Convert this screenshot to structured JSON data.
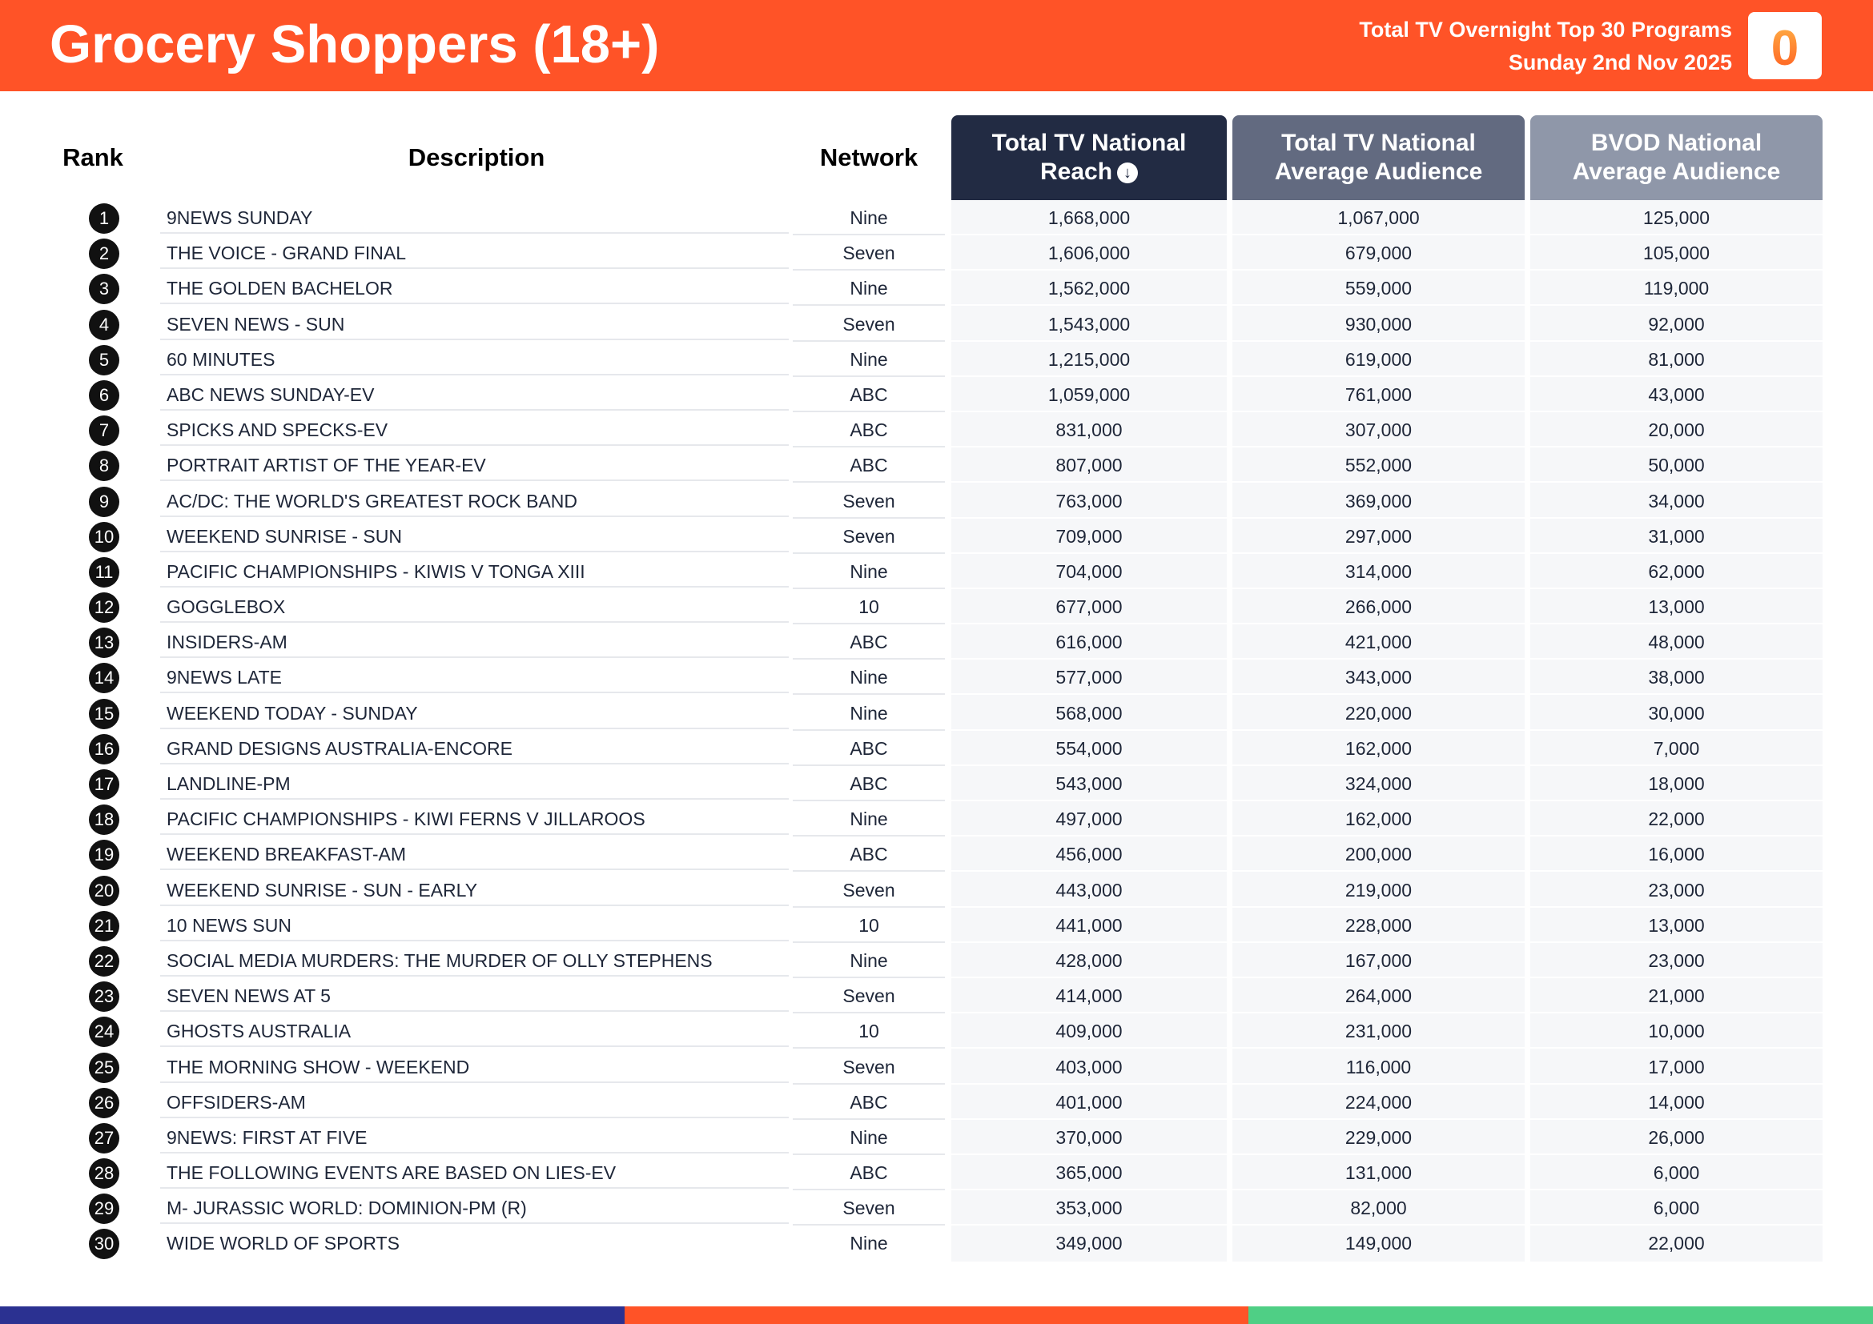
{
  "header": {
    "title": "Grocery Shoppers (18+)",
    "subtitle_line1": "Total TV Overnight Top 30 Programs",
    "subtitle_line2": "Sunday 2nd Nov 2025",
    "logo_label": "0",
    "logo_icon": "oztam-logo-icon",
    "color": "#ff5327"
  },
  "columns": {
    "rank": "Rank",
    "description": "Description",
    "network": "Network",
    "reach_line1": "Total TV National",
    "reach_line2": "Reach",
    "reach_sort_icon": "sort-down-circle-icon",
    "avg_line1": "Total TV National",
    "avg_line2": "Average Audience",
    "bvod_line1": "BVOD National",
    "bvod_line2": "Average Audience"
  },
  "colors": {
    "reach_header": "#222b43",
    "avg_header": "#626a80",
    "bvod_header": "#8f97a9",
    "footer_1": "#2b3191",
    "footer_2": "#ff5327",
    "footer_3": "#4fcf85"
  },
  "rows": [
    {
      "rank": "1",
      "description": "9NEWS SUNDAY",
      "network": "Nine",
      "reach": "1,668,000",
      "avg": "1,067,000",
      "bvod": "125,000"
    },
    {
      "rank": "2",
      "description": "THE VOICE - GRAND FINAL",
      "network": "Seven",
      "reach": "1,606,000",
      "avg": "679,000",
      "bvod": "105,000"
    },
    {
      "rank": "3",
      "description": "THE GOLDEN BACHELOR",
      "network": "Nine",
      "reach": "1,562,000",
      "avg": "559,000",
      "bvod": "119,000"
    },
    {
      "rank": "4",
      "description": "SEVEN NEWS - SUN",
      "network": "Seven",
      "reach": "1,543,000",
      "avg": "930,000",
      "bvod": "92,000"
    },
    {
      "rank": "5",
      "description": "60 MINUTES",
      "network": "Nine",
      "reach": "1,215,000",
      "avg": "619,000",
      "bvod": "81,000"
    },
    {
      "rank": "6",
      "description": "ABC NEWS SUNDAY-EV",
      "network": "ABC",
      "reach": "1,059,000",
      "avg": "761,000",
      "bvod": "43,000"
    },
    {
      "rank": "7",
      "description": "SPICKS AND SPECKS-EV",
      "network": "ABC",
      "reach": "831,000",
      "avg": "307,000",
      "bvod": "20,000"
    },
    {
      "rank": "8",
      "description": "PORTRAIT ARTIST OF THE YEAR-EV",
      "network": "ABC",
      "reach": "807,000",
      "avg": "552,000",
      "bvod": "50,000"
    },
    {
      "rank": "9",
      "description": "AC/DC: THE WORLD'S GREATEST ROCK BAND",
      "network": "Seven",
      "reach": "763,000",
      "avg": "369,000",
      "bvod": "34,000"
    },
    {
      "rank": "10",
      "description": "WEEKEND SUNRISE - SUN",
      "network": "Seven",
      "reach": "709,000",
      "avg": "297,000",
      "bvod": "31,000"
    },
    {
      "rank": "11",
      "description": "PACIFIC CHAMPIONSHIPS - KIWIS V TONGA XIII",
      "network": "Nine",
      "reach": "704,000",
      "avg": "314,000",
      "bvod": "62,000"
    },
    {
      "rank": "12",
      "description": "GOGGLEBOX",
      "network": "10",
      "reach": "677,000",
      "avg": "266,000",
      "bvod": "13,000"
    },
    {
      "rank": "13",
      "description": "INSIDERS-AM",
      "network": "ABC",
      "reach": "616,000",
      "avg": "421,000",
      "bvod": "48,000"
    },
    {
      "rank": "14",
      "description": "9NEWS LATE",
      "network": "Nine",
      "reach": "577,000",
      "avg": "343,000",
      "bvod": "38,000"
    },
    {
      "rank": "15",
      "description": "WEEKEND TODAY - SUNDAY",
      "network": "Nine",
      "reach": "568,000",
      "avg": "220,000",
      "bvod": "30,000"
    },
    {
      "rank": "16",
      "description": "GRAND DESIGNS AUSTRALIA-ENCORE",
      "network": "ABC",
      "reach": "554,000",
      "avg": "162,000",
      "bvod": "7,000"
    },
    {
      "rank": "17",
      "description": "LANDLINE-PM",
      "network": "ABC",
      "reach": "543,000",
      "avg": "324,000",
      "bvod": "18,000"
    },
    {
      "rank": "18",
      "description": "PACIFIC CHAMPIONSHIPS - KIWI FERNS V JILLAROOS",
      "network": "Nine",
      "reach": "497,000",
      "avg": "162,000",
      "bvod": "22,000"
    },
    {
      "rank": "19",
      "description": "WEEKEND BREAKFAST-AM",
      "network": "ABC",
      "reach": "456,000",
      "avg": "200,000",
      "bvod": "16,000"
    },
    {
      "rank": "20",
      "description": "WEEKEND SUNRISE - SUN - EARLY",
      "network": "Seven",
      "reach": "443,000",
      "avg": "219,000",
      "bvod": "23,000"
    },
    {
      "rank": "21",
      "description": "10 NEWS SUN",
      "network": "10",
      "reach": "441,000",
      "avg": "228,000",
      "bvod": "13,000"
    },
    {
      "rank": "22",
      "description": "SOCIAL MEDIA MURDERS: THE MURDER OF OLLY STEPHENS",
      "network": "Nine",
      "reach": "428,000",
      "avg": "167,000",
      "bvod": "23,000"
    },
    {
      "rank": "23",
      "description": "SEVEN NEWS AT 5",
      "network": "Seven",
      "reach": "414,000",
      "avg": "264,000",
      "bvod": "21,000"
    },
    {
      "rank": "24",
      "description": "GHOSTS AUSTRALIA",
      "network": "10",
      "reach": "409,000",
      "avg": "231,000",
      "bvod": "10,000"
    },
    {
      "rank": "25",
      "description": "THE MORNING SHOW - WEEKEND",
      "network": "Seven",
      "reach": "403,000",
      "avg": "116,000",
      "bvod": "17,000"
    },
    {
      "rank": "26",
      "description": "OFFSIDERS-AM",
      "network": "ABC",
      "reach": "401,000",
      "avg": "224,000",
      "bvod": "14,000"
    },
    {
      "rank": "27",
      "description": "9NEWS: FIRST AT FIVE",
      "network": "Nine",
      "reach": "370,000",
      "avg": "229,000",
      "bvod": "26,000"
    },
    {
      "rank": "28",
      "description": "THE FOLLOWING EVENTS ARE BASED ON LIES-EV",
      "network": "ABC",
      "reach": "365,000",
      "avg": "131,000",
      "bvod": "6,000"
    },
    {
      "rank": "29",
      "description": "M- JURASSIC WORLD: DOMINION-PM (R)",
      "network": "Seven",
      "reach": "353,000",
      "avg": "82,000",
      "bvod": "6,000"
    },
    {
      "rank": "30",
      "description": "WIDE WORLD OF SPORTS",
      "network": "Nine",
      "reach": "349,000",
      "avg": "149,000",
      "bvod": "22,000"
    }
  ]
}
